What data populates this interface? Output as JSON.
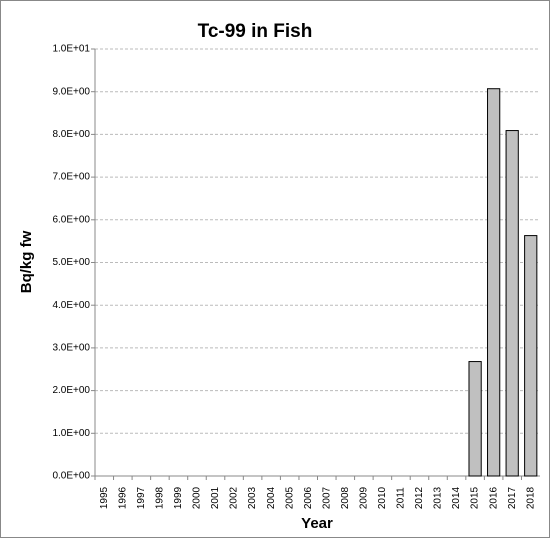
{
  "chart_data": {
    "type": "bar",
    "title": "Tc-99 in Fish",
    "x_label": "Year",
    "y_label": "Bq/kg fw",
    "categories": [
      "1995",
      "1996",
      "1997",
      "1998",
      "1999",
      "2000",
      "2001",
      "2002",
      "2003",
      "2004",
      "2005",
      "2006",
      "2007",
      "2008",
      "2009",
      "2010",
      "2011",
      "2012",
      "2013",
      "2014",
      "2015",
      "2016",
      "2017",
      "2018"
    ],
    "values": [
      null,
      null,
      null,
      null,
      null,
      null,
      null,
      null,
      null,
      null,
      null,
      null,
      null,
      null,
      null,
      null,
      null,
      null,
      null,
      null,
      2.68,
      9.07,
      8.09,
      5.63
    ],
    "color": "#c0c0c0",
    "ylim": [
      0,
      10
    ],
    "yticks": [
      {
        "value": 0,
        "label": "0.0E+00"
      },
      {
        "value": 1,
        "label": "1.0E+00"
      },
      {
        "value": 2,
        "label": "2.0E+00"
      },
      {
        "value": 3,
        "label": "3.0E+00"
      },
      {
        "value": 4,
        "label": "4.0E+00"
      },
      {
        "value": 5,
        "label": "5.0E+00"
      },
      {
        "value": 6,
        "label": "6.0E+00"
      },
      {
        "value": 7,
        "label": "7.0E+00"
      },
      {
        "value": 8,
        "label": "8.0E+00"
      },
      {
        "value": 9,
        "label": "9.0E+00"
      },
      {
        "value": 10,
        "label": "1.0E+01"
      }
    ],
    "grid": true
  }
}
